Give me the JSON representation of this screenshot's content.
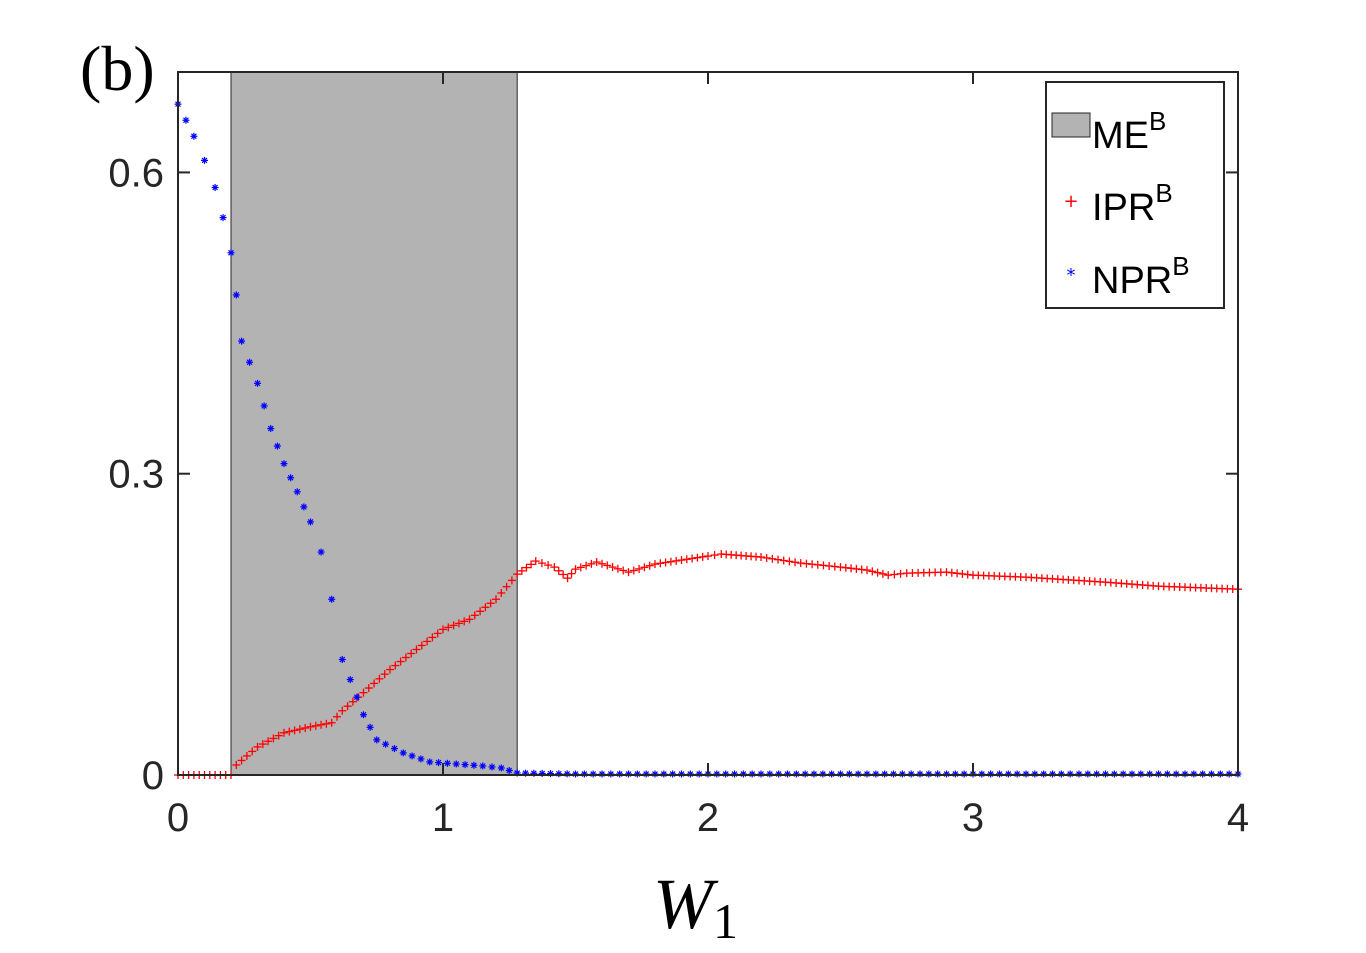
{
  "chart_data": {
    "type": "scatter",
    "panel_label": "(b)",
    "xlabel": "W",
    "xlabel_subscript": "1",
    "ylabel": "",
    "xlim": [
      0,
      4
    ],
    "ylim": [
      0,
      0.7
    ],
    "x_ticks": [
      0,
      1,
      2,
      3,
      4
    ],
    "x_tick_labels": [
      "0",
      "1",
      "2",
      "3",
      "4"
    ],
    "y_ticks": [
      0,
      0.3,
      0.6
    ],
    "y_tick_labels": [
      "0",
      "0.3",
      "0.6"
    ],
    "grid": false,
    "legend_position": "top-right",
    "shaded_region": {
      "name": "ME",
      "name_sup": "B",
      "x_range": [
        0.2,
        1.28
      ],
      "color": "#b3b3b3"
    },
    "series": [
      {
        "name": "IPR",
        "name_sup": "B",
        "color": "#ff0000",
        "marker": "+",
        "points": [
          [
            0.0,
            0.0
          ],
          [
            0.2,
            0.0
          ],
          [
            0.22,
            0.01
          ],
          [
            0.3,
            0.028
          ],
          [
            0.4,
            0.042
          ],
          [
            0.5,
            0.048
          ],
          [
            0.58,
            0.052
          ],
          [
            0.62,
            0.064
          ],
          [
            0.7,
            0.082
          ],
          [
            0.8,
            0.105
          ],
          [
            0.9,
            0.125
          ],
          [
            1.0,
            0.145
          ],
          [
            1.1,
            0.155
          ],
          [
            1.2,
            0.175
          ],
          [
            1.28,
            0.2
          ],
          [
            1.35,
            0.213
          ],
          [
            1.42,
            0.207
          ],
          [
            1.47,
            0.196
          ],
          [
            1.5,
            0.205
          ],
          [
            1.58,
            0.212
          ],
          [
            1.7,
            0.202
          ],
          [
            1.8,
            0.21
          ],
          [
            2.0,
            0.218
          ],
          [
            2.05,
            0.22
          ],
          [
            2.2,
            0.217
          ],
          [
            2.35,
            0.211
          ],
          [
            2.5,
            0.207
          ],
          [
            2.6,
            0.204
          ],
          [
            2.68,
            0.199
          ],
          [
            2.75,
            0.201
          ],
          [
            2.9,
            0.202
          ],
          [
            3.0,
            0.199
          ],
          [
            3.2,
            0.197
          ],
          [
            3.5,
            0.192
          ],
          [
            3.7,
            0.188
          ],
          [
            4.0,
            0.185
          ]
        ]
      },
      {
        "name": "NPR",
        "name_sup": "B",
        "color": "#0000ff",
        "marker": "*",
        "points": [
          [
            0.0,
            0.668
          ],
          [
            0.03,
            0.652
          ],
          [
            0.06,
            0.636
          ],
          [
            0.1,
            0.612
          ],
          [
            0.14,
            0.585
          ],
          [
            0.17,
            0.555
          ],
          [
            0.2,
            0.52
          ],
          [
            0.22,
            0.478
          ],
          [
            0.24,
            0.432
          ],
          [
            0.3,
            0.39
          ],
          [
            0.35,
            0.345
          ],
          [
            0.4,
            0.31
          ],
          [
            0.45,
            0.282
          ],
          [
            0.5,
            0.252
          ],
          [
            0.54,
            0.222
          ],
          [
            0.58,
            0.175
          ],
          [
            0.62,
            0.115
          ],
          [
            0.65,
            0.095
          ],
          [
            0.7,
            0.06
          ],
          [
            0.75,
            0.035
          ],
          [
            0.85,
            0.022
          ],
          [
            0.95,
            0.013
          ],
          [
            1.05,
            0.011
          ],
          [
            1.15,
            0.009
          ],
          [
            1.22,
            0.007
          ],
          [
            1.28,
            0.002
          ],
          [
            1.5,
            0.001
          ],
          [
            2.0,
            0.001
          ],
          [
            3.0,
            0.001
          ],
          [
            4.0,
            0.001
          ]
        ]
      }
    ]
  }
}
